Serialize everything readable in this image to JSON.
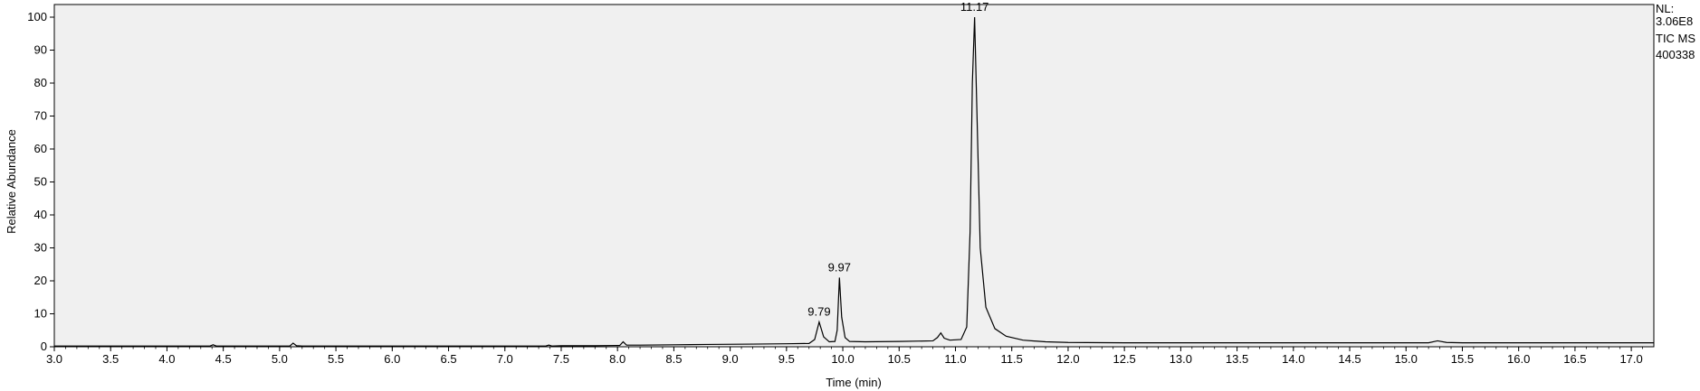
{
  "info": {
    "nl_label": "NL:",
    "nl_value": "3.06E8",
    "scan_filter": "TIC  MS",
    "file_name": "400338"
  },
  "chart_data": {
    "type": "line",
    "title": "",
    "xlabel": "Time (min)",
    "ylabel": "Relative Abundance",
    "xlim": [
      3.0,
      17.2
    ],
    "ylim": [
      0,
      100
    ],
    "x_ticks": [
      3.0,
      3.5,
      4.0,
      4.5,
      5.0,
      5.5,
      6.0,
      6.5,
      7.0,
      7.5,
      8.0,
      8.5,
      9.0,
      9.5,
      10.0,
      10.5,
      11.0,
      11.5,
      12.0,
      12.5,
      13.0,
      13.5,
      14.0,
      14.5,
      15.0,
      15.5,
      16.0,
      16.5,
      17.0
    ],
    "x_tick_labels": [
      "3.0",
      "3.5",
      "4.0",
      "4.5",
      "5.0",
      "5.5",
      "6.0",
      "6.5",
      "7.0",
      "7.5",
      "8.0",
      "8.5",
      "9.0",
      "9.5",
      "10.0",
      "10.5",
      "11.0",
      "11.5",
      "12.0",
      "12.5",
      "13.0",
      "13.5",
      "14.0",
      "14.5",
      "15.0",
      "15.5",
      "16.0",
      "16.5",
      "17.0"
    ],
    "y_ticks": [
      0,
      10,
      20,
      30,
      40,
      50,
      60,
      70,
      80,
      90,
      100
    ],
    "y_tick_labels": [
      "0",
      "10",
      "20",
      "30",
      "40",
      "50",
      "60",
      "70",
      "80",
      "90",
      "100"
    ],
    "grid": false,
    "background": "#f0f0f0",
    "line_color": "#000000",
    "peaks": [
      {
        "label": "9.79",
        "x": 9.79,
        "y": 7.5
      },
      {
        "label": "9.97",
        "x": 9.97,
        "y": 21
      },
      {
        "label": "11.17",
        "x": 11.17,
        "y": 100
      }
    ],
    "series": [
      {
        "x": [
          3.0,
          3.5,
          4.0,
          4.38,
          4.41,
          4.44,
          4.6,
          5.0,
          5.09,
          5.12,
          5.15,
          5.2,
          5.5,
          6.0,
          6.5,
          7.0,
          7.36,
          7.39,
          7.42,
          7.5,
          7.8,
          8.0,
          8.02,
          8.05,
          8.08,
          8.2,
          8.5,
          8.8,
          9.2,
          9.5,
          9.7,
          9.75,
          9.79,
          9.83,
          9.88,
          9.93,
          9.95,
          9.97,
          9.99,
          10.02,
          10.06,
          10.2,
          10.5,
          10.8,
          10.84,
          10.87,
          10.9,
          10.95,
          11.05,
          11.1,
          11.13,
          11.15,
          11.17,
          11.19,
          11.22,
          11.27,
          11.35,
          11.45,
          11.6,
          11.8,
          12.0,
          12.5,
          13.0,
          13.5,
          14.0,
          14.5,
          15.0,
          15.2,
          15.28,
          15.36,
          15.5,
          16.0,
          16.5,
          17.0,
          17.2
        ],
        "y": [
          0.2,
          0.2,
          0.2,
          0.2,
          0.6,
          0.2,
          0.2,
          0.2,
          0.2,
          1.1,
          0.3,
          0.2,
          0.2,
          0.2,
          0.2,
          0.2,
          0.2,
          0.5,
          0.2,
          0.3,
          0.3,
          0.4,
          0.4,
          1.5,
          0.5,
          0.5,
          0.6,
          0.7,
          0.8,
          0.9,
          1.0,
          2.2,
          7.5,
          3.0,
          1.5,
          1.6,
          5.0,
          21.0,
          9.0,
          2.8,
          1.6,
          1.5,
          1.6,
          1.8,
          2.8,
          4.2,
          2.6,
          2.0,
          2.2,
          6.0,
          35.0,
          80.0,
          100.0,
          72.0,
          30.0,
          12.0,
          5.5,
          3.2,
          2.0,
          1.5,
          1.3,
          1.2,
          1.2,
          1.2,
          1.2,
          1.2,
          1.2,
          1.2,
          1.8,
          1.3,
          1.2,
          1.2,
          1.2,
          1.2,
          1.2
        ]
      }
    ]
  }
}
